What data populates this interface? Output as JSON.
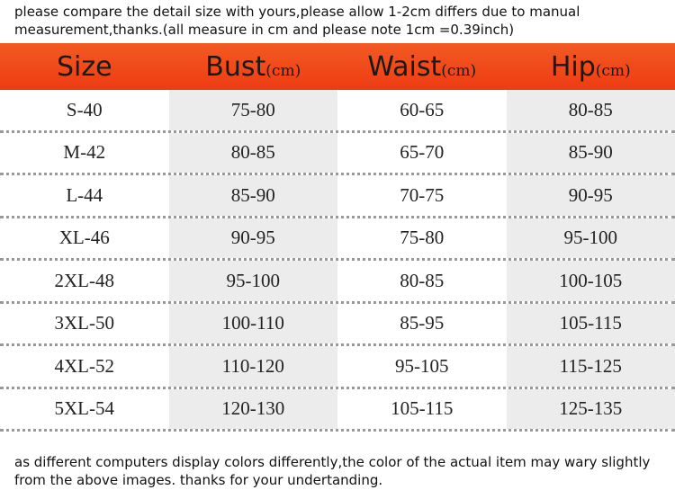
{
  "note_top": [
    "please compare the detail size with yours,please allow 1-2cm differs due to manual",
    "measurement,thanks.(all measure in cm and please note 1cm =0.39inch)"
  ],
  "table": {
    "header": [
      {
        "label": "Size"
      },
      {
        "label": "Bust",
        "unit": "(cm)"
      },
      {
        "label": "Waist",
        "unit": "(cm)"
      },
      {
        "label": "Hip",
        "unit": "(cm)"
      }
    ],
    "rows": [
      [
        "S-40",
        "75-80",
        "60-65",
        "80-85"
      ],
      [
        "M-42",
        "80-85",
        "65-70",
        "85-90"
      ],
      [
        "L-44",
        "85-90",
        "70-75",
        "90-95"
      ],
      [
        "XL-46",
        "90-95",
        "75-80",
        "95-100"
      ],
      [
        "2XL-48",
        "95-100",
        "80-85",
        "100-105"
      ],
      [
        "3XL-50",
        "100-110",
        "85-95",
        "105-115"
      ],
      [
        "4XL-52",
        "110-120",
        "95-105",
        "115-125"
      ],
      [
        "5XL-54",
        "120-130",
        "105-115",
        "125-135"
      ]
    ]
  },
  "note_bottom": [
    "as different computers display colors differently,the color of the actual item may wary slightly",
    "from the above images. thanks for your undertanding."
  ]
}
